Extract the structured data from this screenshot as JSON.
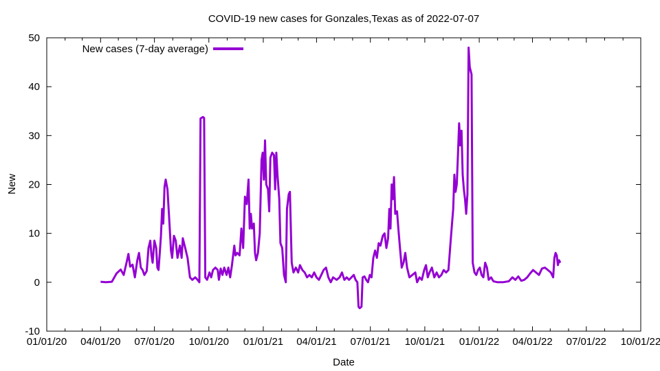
{
  "chart_data": {
    "type": "line",
    "title": "COVID-19 new cases for Gonzales,Texas as of 2022-07-07",
    "xlabel": "Date",
    "ylabel": "New",
    "ylim": [
      -10,
      50
    ],
    "yticks": [
      -10,
      0,
      10,
      20,
      30,
      40,
      50
    ],
    "xlim": [
      "2020-01-01",
      "2022-10-01"
    ],
    "xticks": [
      {
        "date": "2020-01-01",
        "label": "01/01/20"
      },
      {
        "date": "2020-04-01",
        "label": "04/01/20"
      },
      {
        "date": "2020-07-01",
        "label": "07/01/20"
      },
      {
        "date": "2020-10-01",
        "label": "10/01/20"
      },
      {
        "date": "2021-01-01",
        "label": "01/01/21"
      },
      {
        "date": "2021-04-01",
        "label": "04/01/21"
      },
      {
        "date": "2021-07-01",
        "label": "07/01/21"
      },
      {
        "date": "2021-10-01",
        "label": "10/01/21"
      },
      {
        "date": "2022-01-01",
        "label": "01/01/22"
      },
      {
        "date": "2022-04-01",
        "label": "04/01/22"
      },
      {
        "date": "2022-07-01",
        "label": "07/01/22"
      },
      {
        "date": "2022-10-01",
        "label": "10/01/22"
      }
    ],
    "legend_position": "top-left",
    "series": [
      {
        "name": "New cases (7-day average)",
        "color": "#9400d3",
        "points": [
          [
            "2020-04-01",
            0.1
          ],
          [
            "2020-04-10",
            0.0
          ],
          [
            "2020-04-20",
            0.1
          ],
          [
            "2020-04-28",
            1.8
          ],
          [
            "2020-05-05",
            2.6
          ],
          [
            "2020-05-10",
            1.5
          ],
          [
            "2020-05-15",
            4.1
          ],
          [
            "2020-05-18",
            5.8
          ],
          [
            "2020-05-21",
            3.2
          ],
          [
            "2020-05-25",
            3.6
          ],
          [
            "2020-05-29",
            1.0
          ],
          [
            "2020-06-02",
            4.5
          ],
          [
            "2020-06-05",
            6.0
          ],
          [
            "2020-06-08",
            3.0
          ],
          [
            "2020-06-11",
            2.5
          ],
          [
            "2020-06-14",
            1.5
          ],
          [
            "2020-06-18",
            2.3
          ],
          [
            "2020-06-21",
            7.0
          ],
          [
            "2020-06-24",
            8.5
          ],
          [
            "2020-06-26",
            5.5
          ],
          [
            "2020-06-28",
            4.0
          ],
          [
            "2020-07-01",
            8.5
          ],
          [
            "2020-07-04",
            7.0
          ],
          [
            "2020-07-06",
            3.0
          ],
          [
            "2020-07-08",
            2.5
          ],
          [
            "2020-07-10",
            6.0
          ],
          [
            "2020-07-12",
            9.5
          ],
          [
            "2020-07-14",
            15.0
          ],
          [
            "2020-07-16",
            12.0
          ],
          [
            "2020-07-18",
            19.5
          ],
          [
            "2020-07-20",
            21.0
          ],
          [
            "2020-07-23",
            19.0
          ],
          [
            "2020-07-26",
            13.0
          ],
          [
            "2020-07-29",
            6.5
          ],
          [
            "2020-07-31",
            5.0
          ],
          [
            "2020-08-03",
            9.5
          ],
          [
            "2020-08-06",
            8.5
          ],
          [
            "2020-08-09",
            5.0
          ],
          [
            "2020-08-13",
            7.5
          ],
          [
            "2020-08-16",
            5.0
          ],
          [
            "2020-08-18",
            9.0
          ],
          [
            "2020-08-22",
            7.0
          ],
          [
            "2020-08-26",
            5.0
          ],
          [
            "2020-08-30",
            1.0
          ],
          [
            "2020-09-03",
            0.5
          ],
          [
            "2020-09-08",
            1.0
          ],
          [
            "2020-09-12",
            0.5
          ],
          [
            "2020-09-15",
            0.0
          ],
          [
            "2020-09-17",
            33.5
          ],
          [
            "2020-09-21",
            33.8
          ],
          [
            "2020-09-23",
            33.6
          ],
          [
            "2020-09-25",
            1.0
          ],
          [
            "2020-09-28",
            0.5
          ],
          [
            "2020-10-02",
            2.0
          ],
          [
            "2020-10-05",
            1.0
          ],
          [
            "2020-10-08",
            2.5
          ],
          [
            "2020-10-12",
            3.0
          ],
          [
            "2020-10-16",
            2.5
          ],
          [
            "2020-10-18",
            0.5
          ],
          [
            "2020-10-21",
            2.8
          ],
          [
            "2020-10-24",
            1.5
          ],
          [
            "2020-10-27",
            3.0
          ],
          [
            "2020-10-31",
            1.5
          ],
          [
            "2020-11-03",
            3.0
          ],
          [
            "2020-11-06",
            1.0
          ],
          [
            "2020-11-09",
            3.5
          ],
          [
            "2020-11-13",
            7.5
          ],
          [
            "2020-11-15",
            5.5
          ],
          [
            "2020-11-18",
            6.0
          ],
          [
            "2020-11-22",
            5.5
          ],
          [
            "2020-11-25",
            11.0
          ],
          [
            "2020-11-28",
            7.0
          ],
          [
            "2020-12-01",
            17.5
          ],
          [
            "2020-12-04",
            16.0
          ],
          [
            "2020-12-07",
            21.0
          ],
          [
            "2020-12-09",
            11.0
          ],
          [
            "2020-12-11",
            14.0
          ],
          [
            "2020-12-13",
            11.0
          ],
          [
            "2020-12-16",
            12.0
          ],
          [
            "2020-12-18",
            6.0
          ],
          [
            "2020-12-20",
            4.5
          ],
          [
            "2020-12-23",
            6.0
          ],
          [
            "2020-12-26",
            10.0
          ],
          [
            "2020-12-29",
            25.0
          ],
          [
            "2020-12-31",
            26.5
          ],
          [
            "2021-01-02",
            21.0
          ],
          [
            "2021-01-04",
            29.0
          ],
          [
            "2021-01-06",
            20.0
          ],
          [
            "2021-01-09",
            19.0
          ],
          [
            "2021-01-11",
            14.5
          ],
          [
            "2021-01-13",
            25.5
          ],
          [
            "2021-01-16",
            26.5
          ],
          [
            "2021-01-19",
            26.0
          ],
          [
            "2021-01-21",
            19.0
          ],
          [
            "2021-01-23",
            26.5
          ],
          [
            "2021-01-25",
            22.0
          ],
          [
            "2021-01-28",
            17.0
          ],
          [
            "2021-01-30",
            8.0
          ],
          [
            "2021-02-02",
            7.0
          ],
          [
            "2021-02-05",
            1.5
          ],
          [
            "2021-02-08",
            0.0
          ],
          [
            "2021-02-10",
            15.0
          ],
          [
            "2021-02-13",
            18.0
          ],
          [
            "2021-02-15",
            18.5
          ],
          [
            "2021-02-18",
            4.0
          ],
          [
            "2021-02-21",
            2.0
          ],
          [
            "2021-02-25",
            3.0
          ],
          [
            "2021-03-01",
            2.0
          ],
          [
            "2021-03-04",
            3.5
          ],
          [
            "2021-03-08",
            2.5
          ],
          [
            "2021-03-12",
            2.0
          ],
          [
            "2021-03-16",
            1.0
          ],
          [
            "2021-03-20",
            1.5
          ],
          [
            "2021-03-24",
            1.0
          ],
          [
            "2021-03-28",
            2.0
          ],
          [
            "2021-04-01",
            1.0
          ],
          [
            "2021-04-05",
            0.5
          ],
          [
            "2021-04-09",
            1.5
          ],
          [
            "2021-04-13",
            2.5
          ],
          [
            "2021-04-17",
            3.0
          ],
          [
            "2021-04-21",
            1.0
          ],
          [
            "2021-04-25",
            0.0
          ],
          [
            "2021-04-29",
            1.0
          ],
          [
            "2021-05-05",
            0.5
          ],
          [
            "2021-05-10",
            1.0
          ],
          [
            "2021-05-14",
            2.0
          ],
          [
            "2021-05-18",
            0.5
          ],
          [
            "2021-05-22",
            1.0
          ],
          [
            "2021-05-26",
            0.5
          ],
          [
            "2021-05-30",
            1.0
          ],
          [
            "2021-06-03",
            1.5
          ],
          [
            "2021-06-06",
            0.5
          ],
          [
            "2021-06-09",
            0.0
          ],
          [
            "2021-06-11",
            -5.0
          ],
          [
            "2021-06-13",
            -5.3
          ],
          [
            "2021-06-16",
            -5.0
          ],
          [
            "2021-06-18",
            1.0
          ],
          [
            "2021-06-21",
            1.2
          ],
          [
            "2021-06-24",
            0.5
          ],
          [
            "2021-06-27",
            0.0
          ],
          [
            "2021-06-30",
            1.5
          ],
          [
            "2021-07-03",
            1.0
          ],
          [
            "2021-07-06",
            5.0
          ],
          [
            "2021-07-09",
            6.5
          ],
          [
            "2021-07-12",
            5.0
          ],
          [
            "2021-07-15",
            8.0
          ],
          [
            "2021-07-18",
            7.5
          ],
          [
            "2021-07-22",
            9.5
          ],
          [
            "2021-07-25",
            10.0
          ],
          [
            "2021-07-28",
            7.0
          ],
          [
            "2021-07-31",
            9.0
          ],
          [
            "2021-08-02",
            15.0
          ],
          [
            "2021-08-04",
            11.0
          ],
          [
            "2021-08-06",
            20.0
          ],
          [
            "2021-08-08",
            17.0
          ],
          [
            "2021-08-10",
            21.5
          ],
          [
            "2021-08-12",
            14.0
          ],
          [
            "2021-08-15",
            14.5
          ],
          [
            "2021-08-18",
            10.0
          ],
          [
            "2021-08-20",
            7.0
          ],
          [
            "2021-08-23",
            3.0
          ],
          [
            "2021-08-26",
            4.0
          ],
          [
            "2021-08-29",
            6.0
          ],
          [
            "2021-09-01",
            3.0
          ],
          [
            "2021-09-05",
            1.0
          ],
          [
            "2021-09-10",
            1.5
          ],
          [
            "2021-09-15",
            2.0
          ],
          [
            "2021-09-18",
            0.0
          ],
          [
            "2021-09-22",
            1.0
          ],
          [
            "2021-09-26",
            0.5
          ],
          [
            "2021-09-30",
            2.5
          ],
          [
            "2021-10-03",
            3.5
          ],
          [
            "2021-10-06",
            1.0
          ],
          [
            "2021-10-09",
            2.0
          ],
          [
            "2021-10-13",
            3.0
          ],
          [
            "2021-10-17",
            1.0
          ],
          [
            "2021-10-21",
            2.0
          ],
          [
            "2021-10-25",
            1.0
          ],
          [
            "2021-10-29",
            1.5
          ],
          [
            "2021-11-02",
            2.5
          ],
          [
            "2021-11-06",
            2.0
          ],
          [
            "2021-11-10",
            2.5
          ],
          [
            "2021-11-14",
            9.0
          ],
          [
            "2021-11-16",
            12.0
          ],
          [
            "2021-11-18",
            15.0
          ],
          [
            "2021-11-20",
            22.0
          ],
          [
            "2021-11-22",
            18.5
          ],
          [
            "2021-11-24",
            20.0
          ],
          [
            "2021-11-26",
            26.0
          ],
          [
            "2021-11-28",
            32.5
          ],
          [
            "2021-11-30",
            28.0
          ],
          [
            "2021-12-02",
            31.0
          ],
          [
            "2021-12-04",
            22.0
          ],
          [
            "2021-12-06",
            19.0
          ],
          [
            "2021-12-08",
            17.0
          ],
          [
            "2021-12-10",
            14.0
          ],
          [
            "2021-12-12",
            18.0
          ],
          [
            "2021-12-14",
            48.0
          ],
          [
            "2021-12-16",
            44.0
          ],
          [
            "2021-12-19",
            42.5
          ],
          [
            "2021-12-21",
            4.0
          ],
          [
            "2021-12-24",
            2.0
          ],
          [
            "2021-12-27",
            1.5
          ],
          [
            "2021-12-30",
            2.5
          ],
          [
            "2022-01-02",
            3.0
          ],
          [
            "2022-01-05",
            1.5
          ],
          [
            "2022-01-08",
            1.0
          ],
          [
            "2022-01-11",
            4.0
          ],
          [
            "2022-01-14",
            3.0
          ],
          [
            "2022-01-17",
            0.5
          ],
          [
            "2022-01-21",
            1.0
          ],
          [
            "2022-01-25",
            0.2
          ],
          [
            "2022-02-01",
            0.0
          ],
          [
            "2022-02-10",
            0.0
          ],
          [
            "2022-02-20",
            0.2
          ],
          [
            "2022-02-26",
            1.0
          ],
          [
            "2022-03-03",
            0.5
          ],
          [
            "2022-03-08",
            1.2
          ],
          [
            "2022-03-13",
            0.3
          ],
          [
            "2022-03-18",
            0.5
          ],
          [
            "2022-03-23",
            1.0
          ],
          [
            "2022-03-28",
            1.8
          ],
          [
            "2022-04-02",
            2.5
          ],
          [
            "2022-04-07",
            2.0
          ],
          [
            "2022-04-12",
            1.5
          ],
          [
            "2022-04-17",
            2.8
          ],
          [
            "2022-04-22",
            3.0
          ],
          [
            "2022-04-27",
            2.5
          ],
          [
            "2022-05-02",
            2.0
          ],
          [
            "2022-05-06",
            1.0
          ],
          [
            "2022-05-08",
            5.0
          ],
          [
            "2022-05-10",
            6.0
          ],
          [
            "2022-05-12",
            5.5
          ],
          [
            "2022-05-14",
            3.5
          ],
          [
            "2022-05-16",
            4.5
          ],
          [
            "2022-05-18",
            4.0
          ]
        ]
      }
    ]
  }
}
